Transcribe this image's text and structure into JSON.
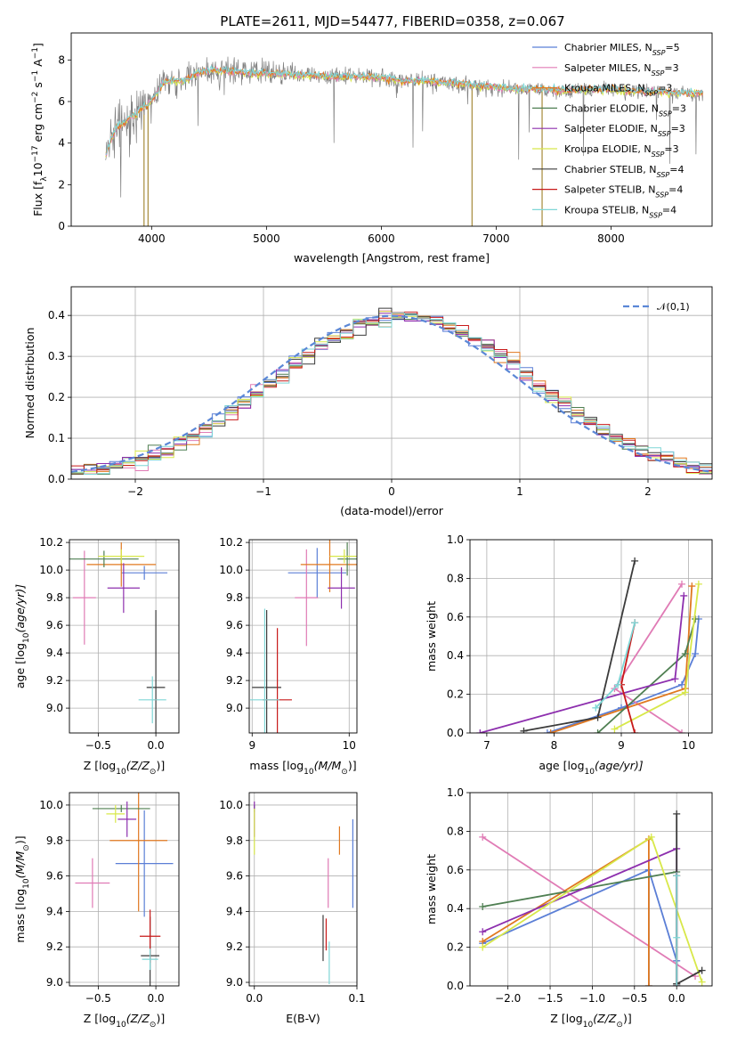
{
  "figure": {
    "title": "PLATE=2611, MJD=54477, FIBERID=0358, z=0.067"
  },
  "colors": {
    "Chabrier MILES": "#5b7fd6",
    "Salpeter MILES": "#e07bb5",
    "Kroupa MILES": "#e0781f",
    "Chabrier ELODIE": "#4f7f52",
    "Salpeter ELODIE": "#8d2fae",
    "Kroupa ELODIE": "#d8e84a",
    "Chabrier STELIB": "#3b3b3b",
    "Salpeter STELIB": "#c81a1a",
    "Kroupa STELIB": "#7fd6d6",
    "data": "#808080"
  },
  "chart_data": [
    {
      "id": "spectrum",
      "type": "line",
      "xlabel": "wavelength [Angstrom, rest frame]",
      "ylabel_main": "Flux [f",
      "ylabel_sub": "λ",
      "ylabel_rest": "10",
      "ylabel_sup1": "−17",
      "ylabel_unit": " erg cm",
      "ylabel_sup2": "−2",
      "ylabel_unit2": " s",
      "ylabel_sup3": "−1",
      "ylabel_unit3": " A",
      "ylabel_sup4": "−1",
      "ylabel_close": "]",
      "xlim": [
        3300,
        8880
      ],
      "ylim": [
        0,
        9.3
      ],
      "xticks": [
        4000,
        5000,
        6000,
        7000,
        8000
      ],
      "yticks": [
        0,
        2,
        4,
        6,
        8
      ],
      "xticklabels": [
        "4000",
        "5000",
        "6000",
        "7000",
        "8000"
      ],
      "yticklabels": [
        "0",
        "2",
        "4",
        "6",
        "8"
      ],
      "legend": [
        {
          "name": "Chabrier MILES",
          "label": "Chabrier MILES, N",
          "sub": "SSP",
          "tail": "=5"
        },
        {
          "name": "Salpeter MILES",
          "label": "Salpeter MILES, N",
          "sub": "SSP",
          "tail": "=3"
        },
        {
          "name": "Kroupa MILES",
          "label": "Kroupa MILES, N",
          "sub": "SSP",
          "tail": "=3"
        },
        {
          "name": "Chabrier ELODIE",
          "label": "Chabrier ELODIE, N",
          "sub": "SSP",
          "tail": "=3"
        },
        {
          "name": "Salpeter ELODIE",
          "label": "Salpeter ELODIE, N",
          "sub": "SSP",
          "tail": "=3"
        },
        {
          "name": "Kroupa ELODIE",
          "label": "Kroupa ELODIE, N",
          "sub": "SSP",
          "tail": "=3"
        },
        {
          "name": "Chabrier STELIB",
          "label": "Chabrier STELIB, N",
          "sub": "SSP",
          "tail": "=4"
        },
        {
          "name": "Salpeter STELIB",
          "label": "Salpeter STELIB, N",
          "sub": "SSP",
          "tail": "=4"
        },
        {
          "name": "Kroupa STELIB",
          "label": "Kroupa STELIB, N",
          "sub": "SSP",
          "tail": "=4"
        }
      ],
      "continuum": [
        [
          3600,
          3.4
        ],
        [
          3650,
          4.2
        ],
        [
          3700,
          4.8
        ],
        [
          3750,
          4.9
        ],
        [
          3800,
          5.2
        ],
        [
          3850,
          5.3
        ],
        [
          3900,
          5.6
        ],
        [
          3950,
          5.8
        ],
        [
          4000,
          6.0
        ],
        [
          4100,
          6.9
        ],
        [
          4200,
          7.0
        ],
        [
          4300,
          7.05
        ],
        [
          4400,
          7.4
        ],
        [
          4500,
          7.5
        ],
        [
          4600,
          7.5
        ],
        [
          4800,
          7.4
        ],
        [
          5000,
          7.35
        ],
        [
          5200,
          7.3
        ],
        [
          5400,
          7.25
        ],
        [
          5600,
          7.2
        ],
        [
          5800,
          7.2
        ],
        [
          6000,
          7.15
        ],
        [
          6200,
          7.0
        ],
        [
          6400,
          7.0
        ],
        [
          6600,
          6.9
        ],
        [
          6800,
          6.8
        ],
        [
          7000,
          6.7
        ],
        [
          7200,
          6.6
        ],
        [
          7400,
          6.6
        ],
        [
          7600,
          6.5
        ],
        [
          7800,
          6.6
        ],
        [
          8000,
          6.6
        ],
        [
          8200,
          6.5
        ],
        [
          8400,
          6.5
        ],
        [
          8600,
          6.4
        ],
        [
          8800,
          6.4
        ]
      ],
      "dips": [
        [
          3934,
          0.0
        ],
        [
          3969,
          0.0
        ],
        [
          6790,
          0.0
        ],
        [
          7400,
          0.0
        ]
      ]
    },
    {
      "id": "residuals",
      "type": "histogram",
      "xlabel": "(data-model)/error",
      "ylabel": "Normed distribution",
      "xlim": [
        -2.5,
        2.5
      ],
      "ylim": [
        0,
        0.47
      ],
      "xticks": [
        -2,
        -1,
        0,
        1,
        2
      ],
      "xticklabels": [
        "−2",
        "−1",
        "0",
        "1",
        "2"
      ],
      "yticks": [
        0,
        0.1,
        0.2,
        0.3,
        0.4
      ],
      "yticklabels": [
        "0.0",
        "0.1",
        "0.2",
        "0.3",
        "0.4"
      ],
      "legend_label": "𝒩(0,1)",
      "bin_width": 0.1,
      "bin_start": -2.5,
      "nbins": 50
    },
    {
      "id": "age-vs-z",
      "type": "errorbar",
      "xlabel": "Z [log",
      "xlabel_sub": "10",
      "xlabel_tail": "(Z/Z",
      "xlabel_sun": "⊙",
      "xlabel_close": ")]",
      "ylabel": "age  [log",
      "ylabel_sub": "10",
      "ylabel_tail": "(age/yr)]",
      "xlim": [
        -0.75,
        0.2
      ],
      "ylim": [
        8.82,
        10.22
      ],
      "xticks": [
        -0.5,
        0.0
      ],
      "xticklabels": [
        "−0.5",
        "0.0"
      ],
      "yticks": [
        9.0,
        9.2,
        9.4,
        9.6,
        9.8,
        10.0,
        10.2
      ],
      "yticklabels": [
        "9.0",
        "9.2",
        "9.4",
        "9.6",
        "9.8",
        "10.0",
        "10.2"
      ],
      "points": [
        {
          "series": "Chabrier MILES",
          "x": -0.1,
          "y": 9.98,
          "xerr": 0.2,
          "yerr": 0.05
        },
        {
          "series": "Salpeter MILES",
          "x": -0.62,
          "y": 9.8,
          "xerr": 0.1,
          "yerr": 0.34
        },
        {
          "series": "Kroupa MILES",
          "x": -0.3,
          "y": 10.04,
          "xerr": 0.3,
          "yerr": 0.16
        },
        {
          "series": "Chabrier ELODIE",
          "x": -0.45,
          "y": 10.08,
          "xerr": 0.3,
          "yerr": 0.06
        },
        {
          "series": "Salpeter ELODIE",
          "x": -0.28,
          "y": 9.87,
          "xerr": 0.14,
          "yerr": 0.18
        },
        {
          "series": "Kroupa ELODIE",
          "x": -0.3,
          "y": 10.1,
          "xerr": 0.2,
          "yerr": 0.05
        },
        {
          "series": "Chabrier STELIB",
          "x": 0.0,
          "y": 9.15,
          "xerr": 0.08,
          "yerr": 0.56
        },
        {
          "series": "Salpeter STELIB",
          "x": 0.0,
          "y": 9.06,
          "xerr": 0.01,
          "yerr": 0.0
        },
        {
          "series": "Kroupa STELIB",
          "x": -0.03,
          "y": 9.06,
          "xerr": 0.12,
          "yerr": 0.17
        }
      ]
    },
    {
      "id": "age-vs-mass",
      "type": "errorbar",
      "xlabel": "mass [log",
      "xlabel_sub": "10",
      "xlabel_tail": "(M/M",
      "xlabel_sun": "⊙",
      "xlabel_close": ")]",
      "xlim": [
        8.97,
        10.08
      ],
      "ylim": [
        8.82,
        10.22
      ],
      "xticks": [
        9,
        10
      ],
      "xticklabels": [
        "9",
        "10"
      ],
      "yticks": [
        9.0,
        9.2,
        9.4,
        9.6,
        9.8,
        10.0,
        10.2
      ],
      "yticklabels": [
        "9.0",
        "9.2",
        "9.4",
        "9.6",
        "9.8",
        "10.0",
        "10.2"
      ],
      "points": [
        {
          "series": "Chabrier MILES",
          "x": 9.67,
          "y": 9.98,
          "xerr": 0.3,
          "yerr": 0.18
        },
        {
          "series": "Salpeter MILES",
          "x": 9.56,
          "y": 9.8,
          "xerr": 0.12,
          "yerr": 0.35
        },
        {
          "series": "Kroupa MILES",
          "x": 9.8,
          "y": 10.04,
          "xerr": 0.3,
          "yerr": 0.2
        },
        {
          "series": "Chabrier ELODIE",
          "x": 9.98,
          "y": 10.08,
          "xerr": 0.1,
          "yerr": 0.12
        },
        {
          "series": "Salpeter ELODIE",
          "x": 9.92,
          "y": 9.87,
          "xerr": 0.14,
          "yerr": 0.15
        },
        {
          "series": "Kroupa ELODIE",
          "x": 9.95,
          "y": 10.1,
          "xerr": 0.15,
          "yerr": 0.05
        },
        {
          "series": "Chabrier STELIB",
          "x": 9.15,
          "y": 9.15,
          "xerr": 0.15,
          "yerr": 0.56
        },
        {
          "series": "Salpeter STELIB",
          "x": 9.26,
          "y": 9.06,
          "xerr": 0.15,
          "yerr": 0.52
        },
        {
          "series": "Kroupa STELIB",
          "x": 9.13,
          "y": 9.06,
          "xerr": 0.15,
          "yerr": 0.66
        }
      ]
    },
    {
      "id": "weight-vs-age",
      "type": "line",
      "xlabel": "age  [log",
      "xlabel_sub": "10",
      "xlabel_tail": "(age/yr)]",
      "ylabel": "mass weight",
      "xlim": [
        6.75,
        10.35
      ],
      "ylim": [
        0,
        1.0
      ],
      "xticks": [
        7,
        8,
        9,
        10
      ],
      "xticklabels": [
        "7",
        "8",
        "9",
        "10"
      ],
      "yticks": [
        0,
        0.2,
        0.4,
        0.6,
        0.8,
        1.0
      ],
      "yticklabels": [
        "0.0",
        "0.2",
        "0.4",
        "0.6",
        "0.8",
        "1.0"
      ],
      "series": [
        {
          "name": "Chabrier MILES",
          "x": [
            7.9,
            9.0,
            9.9,
            10.1,
            10.15
          ],
          "y": [
            0.0,
            0.13,
            0.25,
            0.41,
            0.59
          ]
        },
        {
          "name": "Salpeter MILES",
          "x": [
            9.9,
            8.9,
            9.9
          ],
          "y": [
            0.0,
            0.23,
            0.77
          ]
        },
        {
          "name": "Kroupa MILES",
          "x": [
            7.95,
            9.95,
            10.05
          ],
          "y": [
            0.0,
            0.23,
            0.76
          ]
        },
        {
          "name": "Chabrier ELODIE",
          "x": [
            8.65,
            9.95,
            10.1
          ],
          "y": [
            0.0,
            0.41,
            0.59
          ]
        },
        {
          "name": "Salpeter ELODIE",
          "x": [
            6.9,
            9.8,
            9.93
          ],
          "y": [
            0.0,
            0.28,
            0.71
          ]
        },
        {
          "name": "Kroupa ELODIE",
          "x": [
            8.9,
            9.95,
            10.15
          ],
          "y": [
            0.02,
            0.21,
            0.77
          ]
        },
        {
          "name": "Chabrier STELIB",
          "x": [
            7.55,
            8.65,
            9.2
          ],
          "y": [
            0.01,
            0.08,
            0.89
          ]
        },
        {
          "name": "Salpeter STELIB",
          "x": [
            9.2,
            9.0,
            9.2
          ],
          "y": [
            0.0,
            0.25,
            0.57
          ]
        },
        {
          "name": "Kroupa STELIB",
          "x": [
            8.62,
            8.95,
            9.2
          ],
          "y": [
            0.13,
            0.25,
            0.57
          ]
        }
      ]
    },
    {
      "id": "mass-vs-z",
      "type": "errorbar",
      "xlabel": "Z [log",
      "xlabel_sub": "10",
      "xlabel_tail": "(Z/Z",
      "xlabel_sun": "⊙",
      "xlabel_close": ")]",
      "ylabel": "mass [log",
      "ylabel_sub": "10",
      "ylabel_tail": "(M/M",
      "ylabel_sun": "⊙",
      "ylabel_close": ")]",
      "xlim": [
        -0.75,
        0.2
      ],
      "ylim": [
        8.98,
        10.07
      ],
      "xticks": [
        -0.5,
        0.0
      ],
      "xticklabels": [
        "−0.5",
        "0.0"
      ],
      "yticks": [
        9.0,
        9.2,
        9.4,
        9.6,
        9.8,
        10.0
      ],
      "yticklabels": [
        "9.0",
        "9.2",
        "9.4",
        "9.6",
        "9.8",
        "10.0"
      ],
      "points": [
        {
          "series": "Chabrier MILES",
          "x": -0.1,
          "y": 9.67,
          "xerr": 0.25,
          "yerr": 0.3
        },
        {
          "series": "Salpeter MILES",
          "x": -0.55,
          "y": 9.56,
          "xerr": 0.15,
          "yerr": 0.14
        },
        {
          "series": "Kroupa MILES",
          "x": -0.15,
          "y": 9.8,
          "xerr": 0.25,
          "yerr": 0.4
        },
        {
          "series": "Chabrier ELODIE",
          "x": -0.3,
          "y": 9.98,
          "xerr": 0.25,
          "yerr": 0.02
        },
        {
          "series": "Salpeter ELODIE",
          "x": -0.25,
          "y": 9.92,
          "xerr": 0.08,
          "yerr": 0.1
        },
        {
          "series": "Kroupa ELODIE",
          "x": -0.35,
          "y": 9.95,
          "xerr": 0.08,
          "yerr": 0.05
        },
        {
          "series": "Chabrier STELIB",
          "x": -0.05,
          "y": 9.15,
          "xerr": 0.08,
          "yerr": 0.22
        },
        {
          "series": "Salpeter STELIB",
          "x": -0.05,
          "y": 9.26,
          "xerr": 0.09,
          "yerr": 0.15
        },
        {
          "series": "Kroupa STELIB",
          "x": -0.05,
          "y": 9.13,
          "xerr": 0.07,
          "yerr": 0.06
        }
      ]
    },
    {
      "id": "mass-vs-ebv",
      "type": "errorbar",
      "xlabel": "E(B-V)",
      "xlim": [
        -0.005,
        0.1
      ],
      "ylim": [
        8.98,
        10.07
      ],
      "xticks": [
        0.0,
        0.1
      ],
      "xticklabels": [
        "0.0",
        "0.1"
      ],
      "yticks": [
        9.0,
        9.2,
        9.4,
        9.6,
        9.8,
        10.0
      ],
      "yticklabels": [
        "9.0",
        "9.2",
        "9.4",
        "9.6",
        "9.8",
        "10.0"
      ],
      "points": [
        {
          "series": "Chabrier MILES",
          "x": 0.096,
          "y": 9.67,
          "xerr": 0.0,
          "yerr": 0.25
        },
        {
          "series": "Salpeter MILES",
          "x": 0.072,
          "y": 9.56,
          "xerr": 0.0,
          "yerr": 0.14
        },
        {
          "series": "Kroupa MILES",
          "x": 0.083,
          "y": 9.8,
          "xerr": 0.0,
          "yerr": 0.08
        },
        {
          "series": "Chabrier ELODIE",
          "x": 0.0,
          "y": 9.98,
          "xerr": 0.0,
          "yerr": 0.02
        },
        {
          "series": "Salpeter ELODIE",
          "x": 0.0,
          "y": 9.92,
          "xerr": 0.0,
          "yerr": 0.1
        },
        {
          "series": "Kroupa ELODIE",
          "x": 0.0,
          "y": 9.85,
          "xerr": 0.0,
          "yerr": 0.13
        },
        {
          "series": "Chabrier STELIB",
          "x": 0.067,
          "y": 9.25,
          "xerr": 0.0,
          "yerr": 0.13
        },
        {
          "series": "Salpeter STELIB",
          "x": 0.07,
          "y": 9.27,
          "xerr": 0.0,
          "yerr": 0.09
        },
        {
          "series": "Kroupa STELIB",
          "x": 0.073,
          "y": 9.11,
          "xerr": 0.0,
          "yerr": 0.12
        }
      ]
    },
    {
      "id": "weight-vs-z",
      "type": "line",
      "xlabel": "Z [log",
      "xlabel_sub": "10",
      "xlabel_tail": "(Z/Z",
      "xlabel_sun": "⊙",
      "xlabel_close": ")]",
      "ylabel": "mass weight",
      "xlim": [
        -2.45,
        0.42
      ],
      "ylim": [
        0,
        1.0
      ],
      "xticks": [
        -2.0,
        -1.5,
        -1.0,
        -0.5,
        0.0
      ],
      "xticklabels": [
        "−2.0",
        "−1.5",
        "−1.0",
        "−0.5",
        "0.0"
      ],
      "yticks": [
        0,
        0.2,
        0.4,
        0.6,
        0.8,
        1.0
      ],
      "yticklabels": [
        "0.0",
        "0.2",
        "0.4",
        "0.6",
        "0.8",
        "1.0"
      ],
      "series": [
        {
          "name": "Chabrier MILES",
          "x": [
            -0.33,
            -0.33,
            -2.3,
            -0.33,
            0.0,
            0.0
          ],
          "y": [
            0.0,
            0.6,
            0.22,
            0.6,
            0.13,
            0.0
          ]
        },
        {
          "name": "Salpeter MILES",
          "x": [
            -2.3,
            0.22
          ],
          "y": [
            0.77,
            0.05
          ]
        },
        {
          "name": "Kroupa MILES",
          "x": [
            -2.3,
            -0.33,
            -0.33
          ],
          "y": [
            0.23,
            0.76,
            0.0
          ]
        },
        {
          "name": "Chabrier ELODIE",
          "x": [
            -2.3,
            0.0,
            0.0
          ],
          "y": [
            0.41,
            0.59,
            0.0
          ]
        },
        {
          "name": "Salpeter ELODIE",
          "x": [
            -2.3,
            0.0,
            0.0
          ],
          "y": [
            0.28,
            0.71,
            0.0
          ]
        },
        {
          "name": "Kroupa ELODIE",
          "x": [
            -2.3,
            -0.3,
            0.3
          ],
          "y": [
            0.2,
            0.77,
            0.02
          ]
        },
        {
          "name": "Chabrier STELIB",
          "x": [
            0.0,
            0.0,
            0.3,
            0.0
          ],
          "y": [
            0.89,
            0.01,
            0.08,
            0.01
          ]
        },
        {
          "name": "Salpeter STELIB",
          "x": [
            0.0,
            0.0
          ],
          "y": [
            0.0,
            0.57
          ]
        },
        {
          "name": "Kroupa STELIB",
          "x": [
            0.0,
            0.0,
            0.0
          ],
          "y": [
            0.0,
            0.25,
            0.57
          ]
        }
      ]
    }
  ]
}
